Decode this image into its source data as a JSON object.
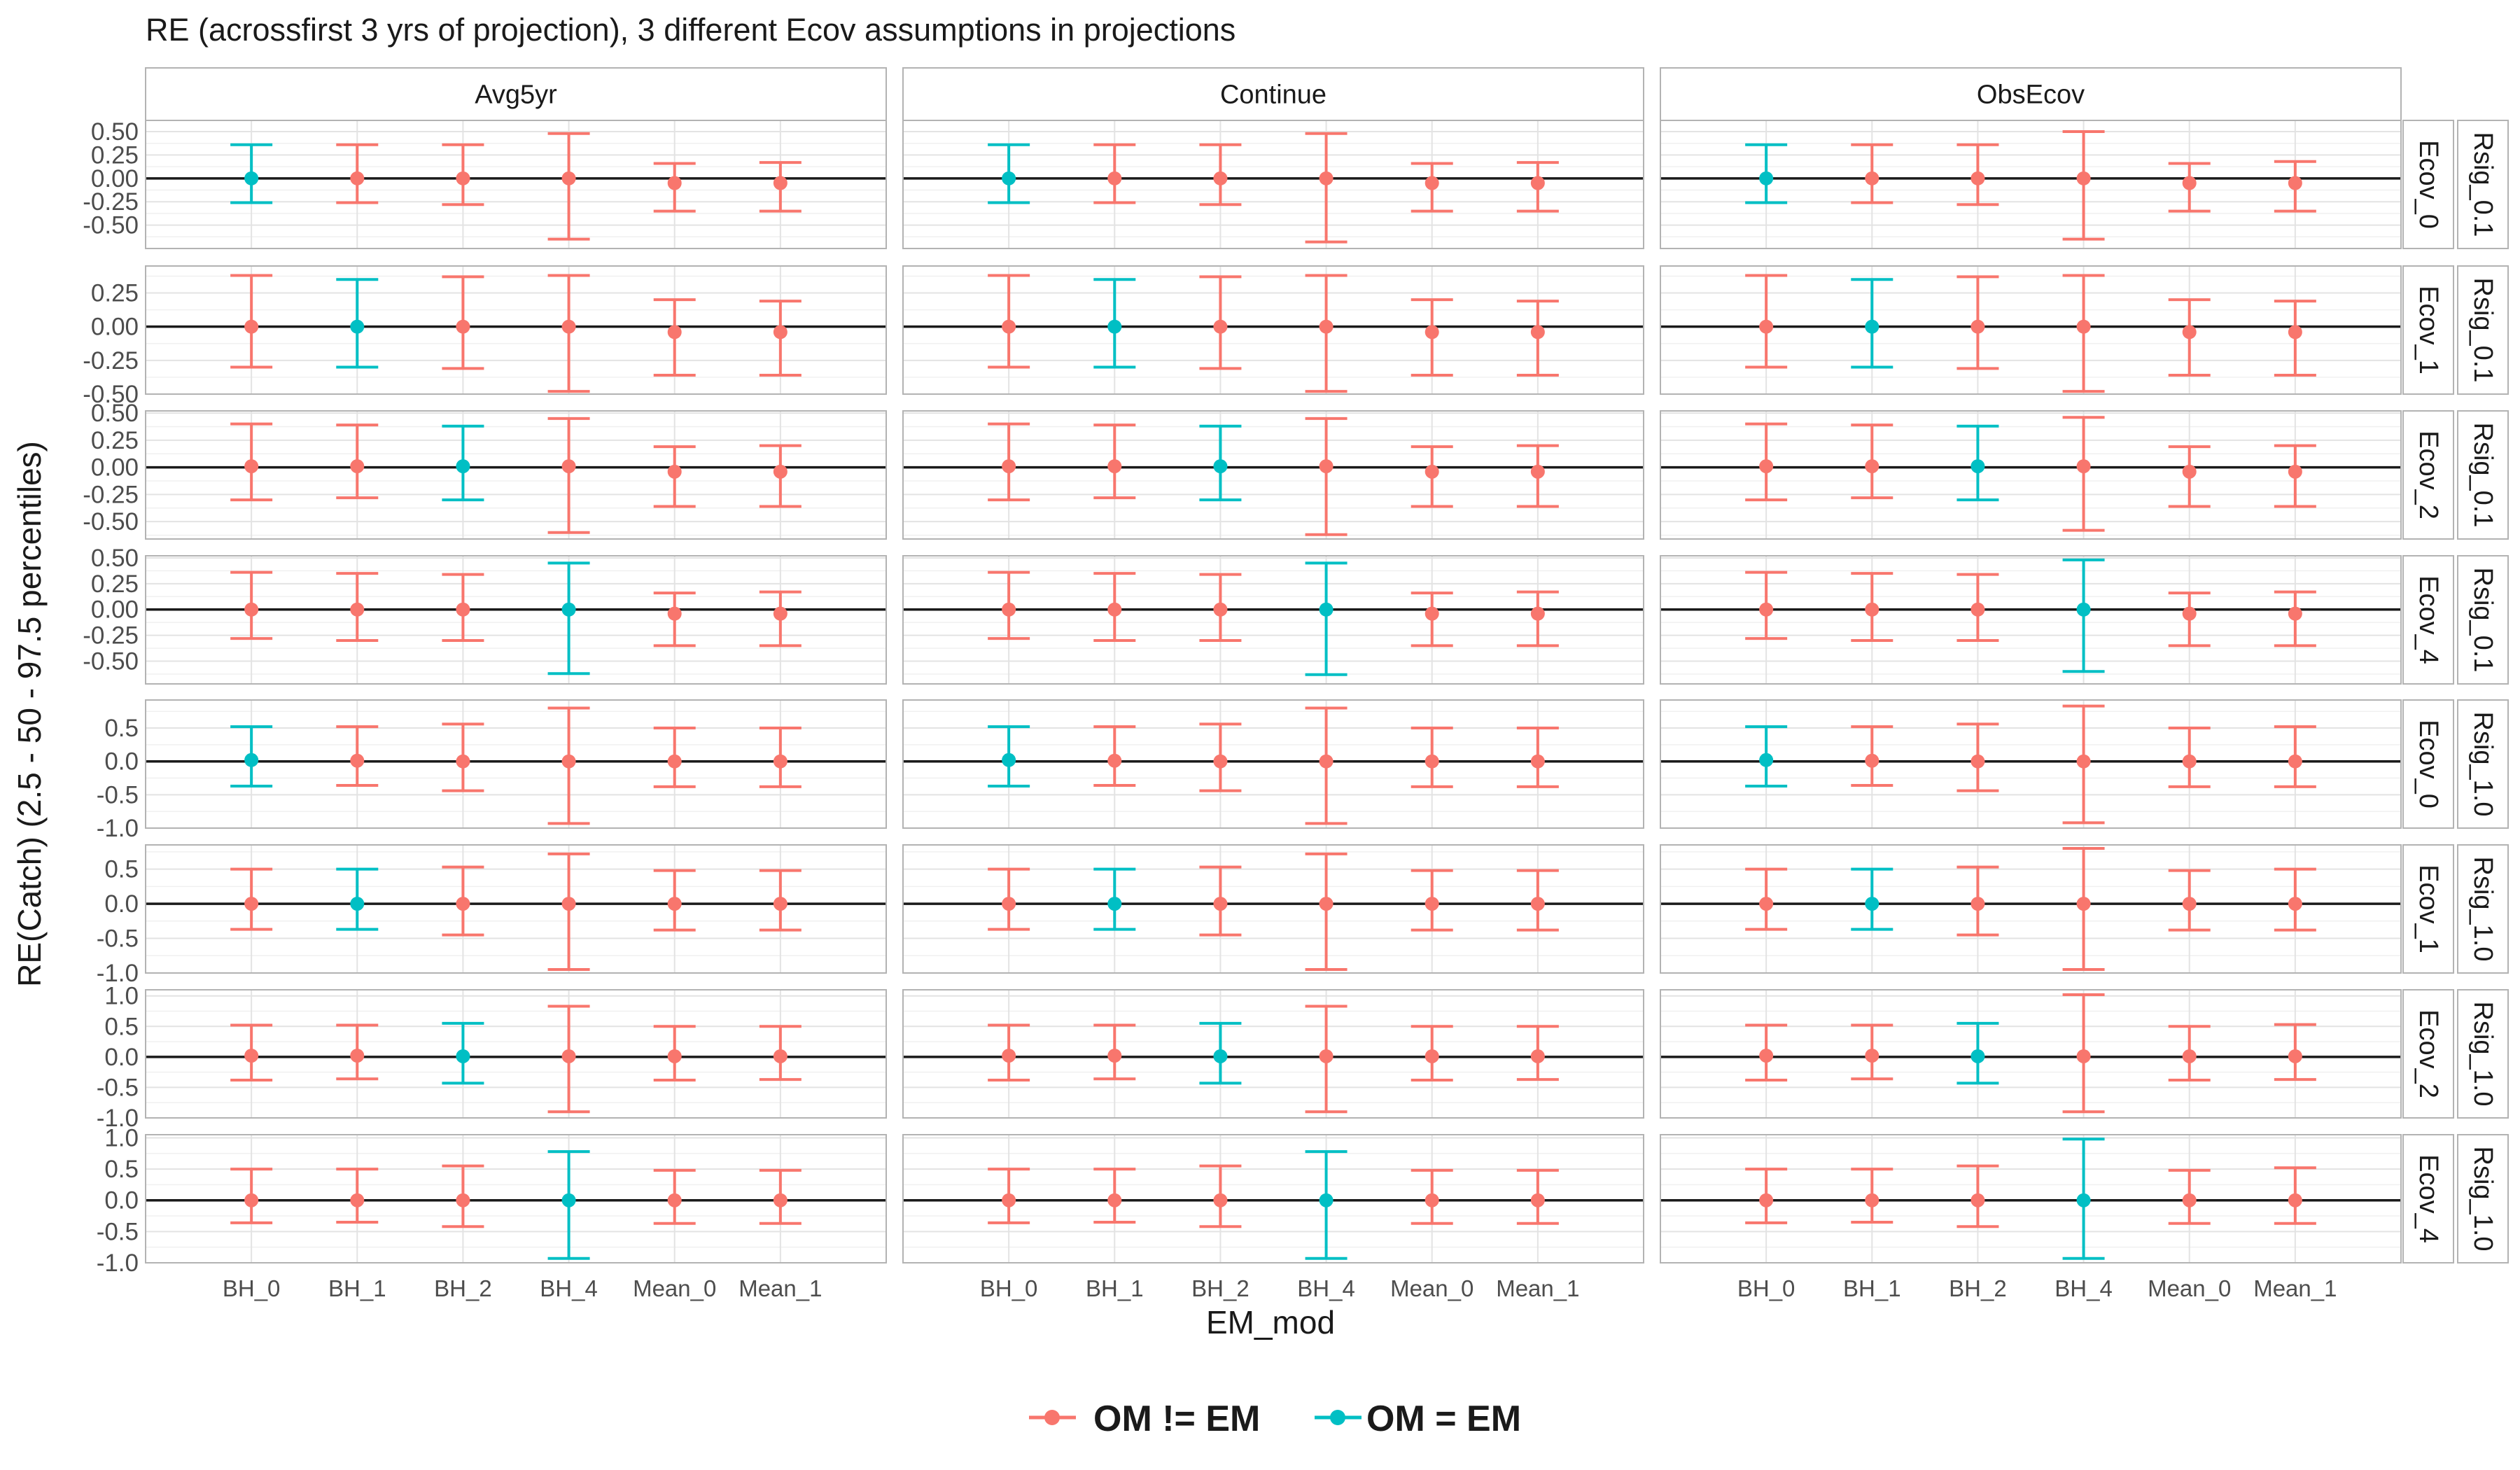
{
  "chart_data": {
    "type": "errorbar",
    "title": "RE (acrossfirst 3 yrs of projection), 3 different Ecov assumptions in projections",
    "xlabel": "EM_mod",
    "ylabel": "RE(Catch) (2.5 - 50 - 97.5 percentiles)",
    "x_categories": [
      "BH_0",
      "BH_1",
      "BH_2",
      "BH_4",
      "Mean_0",
      "Mean_1"
    ],
    "facet_columns": [
      "Avg5yr",
      "Continue",
      "ObsEcov"
    ],
    "facet_rows": [
      {
        "ecov": "Ecov_0",
        "rsig": "Rsig_0.1",
        "ylim": [
          -0.75,
          0.62
        ],
        "yticks": [
          0.5,
          0.25,
          0.0,
          -0.25,
          -0.5
        ],
        "ytick_labels": [
          "0.50",
          "0.25",
          "0.00",
          "-0.25",
          "-0.50"
        ],
        "om_index": 0
      },
      {
        "ecov": "Ecov_1",
        "rsig": "Rsig_0.1",
        "ylim": [
          -0.5,
          0.45
        ],
        "yticks": [
          0.25,
          0.0,
          -0.25,
          -0.5
        ],
        "ytick_labels": [
          "0.25",
          "0.00",
          "-0.25",
          "-0.50"
        ],
        "om_index": 1
      },
      {
        "ecov": "Ecov_2",
        "rsig": "Rsig_0.1",
        "ylim": [
          -0.66,
          0.52
        ],
        "yticks": [
          0.5,
          0.25,
          0.0,
          -0.25,
          -0.5
        ],
        "ytick_labels": [
          "0.50",
          "0.25",
          "0.00",
          "-0.25",
          "-0.50"
        ],
        "om_index": 2
      },
      {
        "ecov": "Ecov_4",
        "rsig": "Rsig_0.1",
        "ylim": [
          -0.72,
          0.52
        ],
        "yticks": [
          0.5,
          0.25,
          0.0,
          -0.25,
          -0.5
        ],
        "ytick_labels": [
          "0.50",
          "0.25",
          "0.00",
          "-0.25",
          "-0.50"
        ],
        "om_index": 3
      },
      {
        "ecov": "Ecov_0",
        "rsig": "Rsig_1.0",
        "ylim": [
          -1.0,
          0.92
        ],
        "yticks": [
          0.5,
          0.0,
          -0.5,
          -1.0
        ],
        "ytick_labels": [
          "0.5",
          "0.0",
          "-0.5",
          "-1.0"
        ],
        "om_index": 0
      },
      {
        "ecov": "Ecov_1",
        "rsig": "Rsig_1.0",
        "ylim": [
          -1.0,
          0.85
        ],
        "yticks": [
          0.5,
          0.0,
          -0.5,
          -1.0
        ],
        "ytick_labels": [
          "0.5",
          "0.0",
          "-0.5",
          "-1.0"
        ],
        "om_index": 1
      },
      {
        "ecov": "Ecov_2",
        "rsig": "Rsig_1.0",
        "ylim": [
          -1.0,
          1.1
        ],
        "yticks": [
          1.0,
          0.5,
          0.0,
          -0.5,
          -1.0
        ],
        "ytick_labels": [
          "1.0",
          "0.5",
          "0.0",
          "-0.5",
          "-1.0"
        ],
        "om_index": 2
      },
      {
        "ecov": "Ecov_4",
        "rsig": "Rsig_1.0",
        "ylim": [
          -1.0,
          1.05
        ],
        "yticks": [
          1.0,
          0.5,
          0.0,
          -0.5,
          -1.0
        ],
        "ytick_labels": [
          "1.0",
          "0.5",
          "0.0",
          "-0.5",
          "-1.0"
        ],
        "om_index": 3
      }
    ],
    "panels": [
      [
        [
          [
            -0.26,
            0.0,
            0.36
          ],
          [
            -0.26,
            0.0,
            0.36
          ],
          [
            -0.28,
            0.0,
            0.36
          ],
          [
            -0.65,
            0.0,
            0.48
          ],
          [
            -0.35,
            -0.05,
            0.16
          ],
          [
            -0.35,
            -0.05,
            0.17
          ]
        ],
        [
          [
            -0.26,
            0.0,
            0.36
          ],
          [
            -0.26,
            0.0,
            0.36
          ],
          [
            -0.28,
            0.0,
            0.36
          ],
          [
            -0.68,
            0.0,
            0.48
          ],
          [
            -0.35,
            -0.05,
            0.16
          ],
          [
            -0.35,
            -0.05,
            0.17
          ]
        ],
        [
          [
            -0.26,
            0.0,
            0.36
          ],
          [
            -0.26,
            0.0,
            0.36
          ],
          [
            -0.28,
            0.0,
            0.36
          ],
          [
            -0.65,
            0.0,
            0.5
          ],
          [
            -0.35,
            -0.05,
            0.16
          ],
          [
            -0.35,
            -0.05,
            0.18
          ]
        ]
      ],
      [
        [
          [
            -0.3,
            0.0,
            0.38
          ],
          [
            -0.3,
            0.0,
            0.35
          ],
          [
            -0.31,
            0.0,
            0.37
          ],
          [
            -0.48,
            0.0,
            0.38
          ],
          [
            -0.36,
            -0.04,
            0.2
          ],
          [
            -0.36,
            -0.04,
            0.19
          ]
        ],
        [
          [
            -0.3,
            0.0,
            0.38
          ],
          [
            -0.3,
            0.0,
            0.35
          ],
          [
            -0.31,
            0.0,
            0.37
          ],
          [
            -0.48,
            0.0,
            0.38
          ],
          [
            -0.36,
            -0.04,
            0.2
          ],
          [
            -0.36,
            -0.04,
            0.19
          ]
        ],
        [
          [
            -0.3,
            0.0,
            0.38
          ],
          [
            -0.3,
            0.0,
            0.35
          ],
          [
            -0.31,
            0.0,
            0.37
          ],
          [
            -0.48,
            0.0,
            0.38
          ],
          [
            -0.36,
            -0.04,
            0.2
          ],
          [
            -0.36,
            -0.04,
            0.19
          ]
        ]
      ],
      [
        [
          [
            -0.3,
            0.01,
            0.4
          ],
          [
            -0.28,
            0.01,
            0.39
          ],
          [
            -0.3,
            0.01,
            0.38
          ],
          [
            -0.6,
            0.01,
            0.45
          ],
          [
            -0.36,
            -0.04,
            0.19
          ],
          [
            -0.36,
            -0.04,
            0.2
          ]
        ],
        [
          [
            -0.3,
            0.01,
            0.4
          ],
          [
            -0.28,
            0.01,
            0.39
          ],
          [
            -0.3,
            0.01,
            0.38
          ],
          [
            -0.62,
            0.01,
            0.45
          ],
          [
            -0.36,
            -0.04,
            0.19
          ],
          [
            -0.36,
            -0.04,
            0.2
          ]
        ],
        [
          [
            -0.3,
            0.01,
            0.4
          ],
          [
            -0.28,
            0.01,
            0.39
          ],
          [
            -0.3,
            0.01,
            0.38
          ],
          [
            -0.58,
            0.01,
            0.46
          ],
          [
            -0.36,
            -0.04,
            0.19
          ],
          [
            -0.36,
            -0.04,
            0.2
          ]
        ]
      ],
      [
        [
          [
            -0.28,
            0.0,
            0.36
          ],
          [
            -0.3,
            0.0,
            0.35
          ],
          [
            -0.3,
            0.0,
            0.34
          ],
          [
            -0.62,
            0.0,
            0.45
          ],
          [
            -0.35,
            -0.04,
            0.16
          ],
          [
            -0.35,
            -0.04,
            0.17
          ]
        ],
        [
          [
            -0.28,
            0.0,
            0.36
          ],
          [
            -0.3,
            0.0,
            0.35
          ],
          [
            -0.3,
            0.0,
            0.34
          ],
          [
            -0.63,
            0.0,
            0.45
          ],
          [
            -0.35,
            -0.04,
            0.16
          ],
          [
            -0.35,
            -0.04,
            0.17
          ]
        ],
        [
          [
            -0.28,
            0.0,
            0.36
          ],
          [
            -0.3,
            0.0,
            0.35
          ],
          [
            -0.3,
            0.0,
            0.34
          ],
          [
            -0.6,
            0.0,
            0.48
          ],
          [
            -0.35,
            -0.04,
            0.16
          ],
          [
            -0.35,
            -0.04,
            0.17
          ]
        ]
      ],
      [
        [
          [
            -0.37,
            0.02,
            0.52
          ],
          [
            -0.36,
            0.01,
            0.52
          ],
          [
            -0.44,
            0.0,
            0.56
          ],
          [
            -0.93,
            0.0,
            0.8
          ],
          [
            -0.38,
            0.0,
            0.5
          ],
          [
            -0.38,
            0.0,
            0.5
          ]
        ],
        [
          [
            -0.37,
            0.02,
            0.52
          ],
          [
            -0.36,
            0.01,
            0.52
          ],
          [
            -0.44,
            0.0,
            0.56
          ],
          [
            -0.93,
            0.0,
            0.8
          ],
          [
            -0.38,
            0.0,
            0.5
          ],
          [
            -0.38,
            0.0,
            0.5
          ]
        ],
        [
          [
            -0.37,
            0.02,
            0.52
          ],
          [
            -0.36,
            0.01,
            0.52
          ],
          [
            -0.44,
            0.0,
            0.56
          ],
          [
            -0.92,
            0.0,
            0.83
          ],
          [
            -0.38,
            0.0,
            0.5
          ],
          [
            -0.38,
            0.0,
            0.52
          ]
        ]
      ],
      [
        [
          [
            -0.37,
            0.0,
            0.5
          ],
          [
            -0.37,
            0.0,
            0.5
          ],
          [
            -0.45,
            0.0,
            0.53
          ],
          [
            -0.95,
            0.0,
            0.72
          ],
          [
            -0.38,
            0.0,
            0.48
          ],
          [
            -0.38,
            0.0,
            0.48
          ]
        ],
        [
          [
            -0.37,
            0.0,
            0.5
          ],
          [
            -0.37,
            0.0,
            0.5
          ],
          [
            -0.45,
            0.0,
            0.53
          ],
          [
            -0.95,
            0.0,
            0.72
          ],
          [
            -0.38,
            0.0,
            0.48
          ],
          [
            -0.38,
            0.0,
            0.48
          ]
        ],
        [
          [
            -0.37,
            0.0,
            0.5
          ],
          [
            -0.37,
            0.0,
            0.5
          ],
          [
            -0.45,
            0.0,
            0.53
          ],
          [
            -0.95,
            0.0,
            0.8
          ],
          [
            -0.38,
            0.0,
            0.48
          ],
          [
            -0.38,
            0.0,
            0.5
          ]
        ]
      ],
      [
        [
          [
            -0.38,
            0.02,
            0.52
          ],
          [
            -0.36,
            0.02,
            0.52
          ],
          [
            -0.43,
            0.01,
            0.55
          ],
          [
            -0.9,
            0.01,
            0.83
          ],
          [
            -0.38,
            0.01,
            0.5
          ],
          [
            -0.37,
            0.01,
            0.5
          ]
        ],
        [
          [
            -0.38,
            0.02,
            0.52
          ],
          [
            -0.36,
            0.02,
            0.52
          ],
          [
            -0.43,
            0.01,
            0.55
          ],
          [
            -0.9,
            0.01,
            0.83
          ],
          [
            -0.38,
            0.01,
            0.5
          ],
          [
            -0.37,
            0.01,
            0.5
          ]
        ],
        [
          [
            -0.38,
            0.02,
            0.52
          ],
          [
            -0.36,
            0.02,
            0.52
          ],
          [
            -0.43,
            0.01,
            0.55
          ],
          [
            -0.9,
            0.01,
            1.02
          ],
          [
            -0.38,
            0.01,
            0.5
          ],
          [
            -0.37,
            0.01,
            0.53
          ]
        ]
      ],
      [
        [
          [
            -0.36,
            0.0,
            0.5
          ],
          [
            -0.35,
            0.0,
            0.5
          ],
          [
            -0.42,
            0.0,
            0.55
          ],
          [
            -0.93,
            0.0,
            0.78
          ],
          [
            -0.37,
            0.0,
            0.48
          ],
          [
            -0.37,
            0.0,
            0.48
          ]
        ],
        [
          [
            -0.36,
            0.0,
            0.5
          ],
          [
            -0.35,
            0.0,
            0.5
          ],
          [
            -0.42,
            0.0,
            0.55
          ],
          [
            -0.93,
            0.0,
            0.78
          ],
          [
            -0.37,
            0.0,
            0.48
          ],
          [
            -0.37,
            0.0,
            0.48
          ]
        ],
        [
          [
            -0.36,
            0.0,
            0.5
          ],
          [
            -0.35,
            0.0,
            0.5
          ],
          [
            -0.42,
            0.0,
            0.55
          ],
          [
            -0.93,
            0.0,
            0.98
          ],
          [
            -0.37,
            0.0,
            0.48
          ],
          [
            -0.37,
            0.0,
            0.52
          ]
        ]
      ]
    ],
    "legend": {
      "position": "bottom",
      "items": [
        {
          "label": "OM != EM",
          "color": "#F8766D"
        },
        {
          "label": "OM = EM",
          "color": "#00BFC4"
        }
      ]
    },
    "grid": true
  }
}
